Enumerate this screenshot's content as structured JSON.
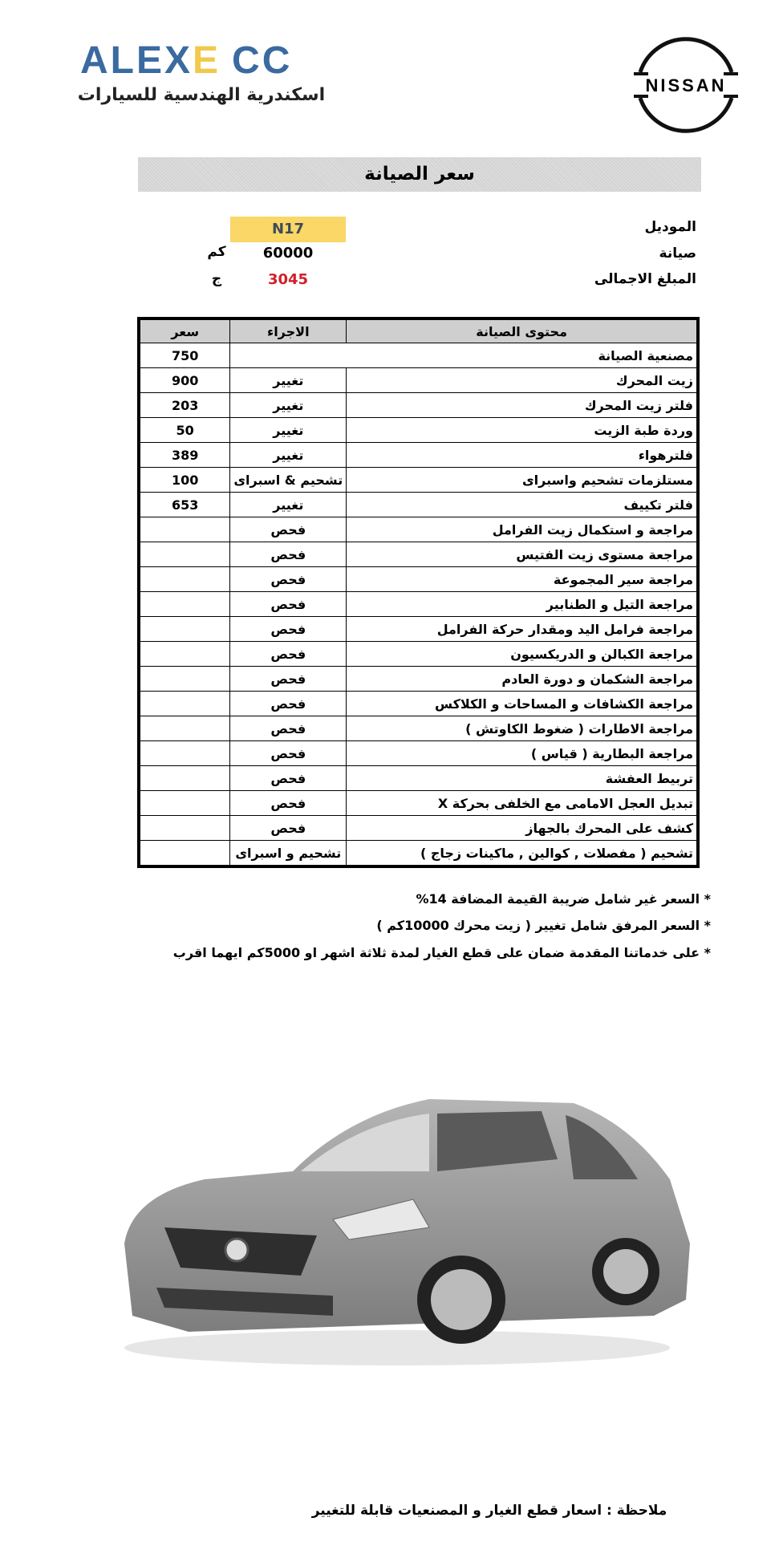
{
  "header": {
    "brand_logo_text": "ALEXECC",
    "brand_subtitle": "اسكندرية الهندسية للسيارات",
    "nissan_logo_text": "NISSAN"
  },
  "title": "سعر الصيانة",
  "info": {
    "model_label": "الموديل",
    "model_value": "N17",
    "service_label": "صيانة",
    "service_value": "60000",
    "service_unit": "كم",
    "total_label": "المبلغ الاجمالى",
    "total_value": "3045",
    "total_unit": "ج",
    "total_color": "#d0202a",
    "model_highlight": "#fad766"
  },
  "table": {
    "headers": {
      "content": "محتوى الصيانة",
      "action": "الاجراء",
      "price": "سعر"
    },
    "rows": [
      {
        "content": "مصنعية الصيانة",
        "action": "",
        "price": "750"
      },
      {
        "content": "زيت المحرك",
        "action": "تغيير",
        "price": "900"
      },
      {
        "content": "فلتر زيت المحرك",
        "action": "تغيير",
        "price": "203"
      },
      {
        "content": "وردة طبة الزيت",
        "action": "تغيير",
        "price": "50"
      },
      {
        "content": "فلترهواء",
        "action": "تغيير",
        "price": "389"
      },
      {
        "content": "مستلزمات تشحيم واسبراى",
        "action": "تشحيم & اسبراى",
        "price": "100"
      },
      {
        "content": "فلتر تكييف",
        "action": "تغيير",
        "price": "653"
      },
      {
        "content": "مراجعة و استكمال زيت الفرامل",
        "action": "فحص",
        "price": ""
      },
      {
        "content": "مراجعة مستوى زيت الفتيس",
        "action": "فحص",
        "price": ""
      },
      {
        "content": "مراجعة سير المجموعة",
        "action": "فحص",
        "price": ""
      },
      {
        "content": "مراجعة التيل و الطنابير",
        "action": "فحص",
        "price": ""
      },
      {
        "content": "مراجعة فرامل اليد ومقدار حركة الفرامل",
        "action": "فحص",
        "price": ""
      },
      {
        "content": "مراجعة الكبالن و الدريكسيون",
        "action": "فحص",
        "price": ""
      },
      {
        "content": "مراجعة الشكمان و دورة العادم",
        "action": "فحص",
        "price": ""
      },
      {
        "content": "مراجعة الكشافات و المساحات و الكلاكس",
        "action": "فحص",
        "price": ""
      },
      {
        "content": "مراجعة الاطارات ( ضغوط الكاوتش )",
        "action": "فحص",
        "price": ""
      },
      {
        "content": "مراجعة البطارية ( قياس )",
        "action": "فحص",
        "price": ""
      },
      {
        "content": "تربيط العفشة",
        "action": "فحص",
        "price": ""
      },
      {
        "content": "تبديل العجل الامامى مع الخلفى بحركة X",
        "action": "فحص",
        "price": ""
      },
      {
        "content": "كشف على المحرك بالجهاز",
        "action": "فحص",
        "price": ""
      },
      {
        "content": "تشحيم ( مفصلات , كوالين , ماكينات زجاج )",
        "action": "تشحيم و اسبراى",
        "price": ""
      }
    ]
  },
  "notes": [
    "*  السعر غير شامل ضريبة القيمة المضافة 14%",
    "*  السعر المرفق شامل تغيير  ( زيت محرك  10000كم )",
    "*  على خدماتنا المقدمة ضمان على قطع الغيار لمدة ثلاثة اشهر او 5000كم ايهما اقرب"
  ],
  "car_image": "car-photo-nissan-sunny-grey",
  "footer_note": "ملاحظة : اسعار قطع الغيار و المصنعيات  قابلة للتغيير"
}
